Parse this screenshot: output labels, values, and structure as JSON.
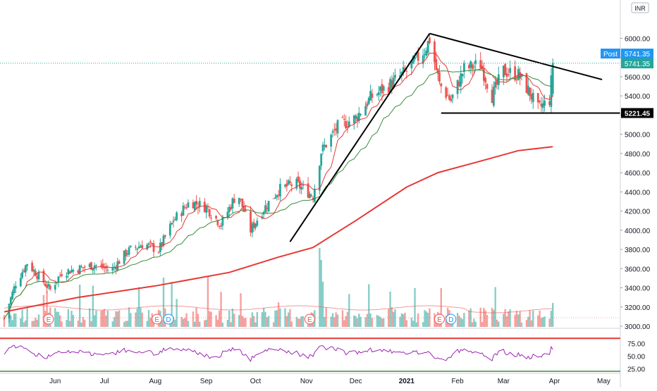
{
  "currency_badge": "INR",
  "post_label": "Post",
  "event_markers": [
    {
      "label": "E",
      "date": "2020-05-28"
    },
    {
      "label": "E",
      "date": "2020-08-02"
    },
    {
      "label": "D",
      "date": "2020-08-09"
    },
    {
      "label": "E",
      "date": "2020-11-03"
    },
    {
      "label": "E",
      "date": "2021-01-21"
    },
    {
      "label": "D",
      "date": "2021-01-28"
    }
  ],
  "chart_data": {
    "type": "candlestick",
    "price_pane": {
      "y_ticks": [
        "6000.00",
        "5800.00",
        "5600.00",
        "5400.00",
        "5200.00",
        "5000.00",
        "4800.00",
        "4600.00",
        "4400.00",
        "4200.00",
        "4000.00",
        "3800.00",
        "3600.00",
        "3400.00",
        "3200.00",
        "3000.00"
      ],
      "ylim": [
        3000,
        6300
      ],
      "scale": "linear",
      "grid": false,
      "last_price": "5741.35",
      "post_price": "5741.35",
      "support_level": "5221.45",
      "trendlines": [
        {
          "from": {
            "date": "2020-10-22",
            "price": 3880
          },
          "to": {
            "date": "2021-01-15",
            "price": 6050
          }
        },
        {
          "from": {
            "date": "2021-01-15",
            "price": 6050
          },
          "to": {
            "date": "2021-04-30",
            "price": 5570
          }
        },
        {
          "from": {
            "date": "2021-01-22",
            "price": 5221.45
          },
          "to": {
            "date": "2021-05-31",
            "price": 5221.45
          }
        }
      ],
      "anchors": [
        {
          "date": "2020-05-01",
          "price": 3080
        },
        {
          "date": "2020-05-08",
          "price": 3450
        },
        {
          "date": "2020-05-15",
          "price": 3660
        },
        {
          "date": "2020-05-22",
          "price": 3520
        },
        {
          "date": "2020-05-29",
          "price": 3380
        },
        {
          "date": "2020-06-05",
          "price": 3560
        },
        {
          "date": "2020-06-15",
          "price": 3600
        },
        {
          "date": "2020-06-25",
          "price": 3640
        },
        {
          "date": "2020-07-05",
          "price": 3580
        },
        {
          "date": "2020-07-15",
          "price": 3780
        },
        {
          "date": "2020-07-25",
          "price": 3860
        },
        {
          "date": "2020-08-03",
          "price": 3790
        },
        {
          "date": "2020-08-12",
          "price": 4100
        },
        {
          "date": "2020-08-22",
          "price": 4300
        },
        {
          "date": "2020-09-01",
          "price": 4240
        },
        {
          "date": "2020-09-10",
          "price": 4060
        },
        {
          "date": "2020-09-20",
          "price": 4400
        },
        {
          "date": "2020-09-28",
          "price": 4000
        },
        {
          "date": "2020-10-05",
          "price": 4200
        },
        {
          "date": "2020-10-15",
          "price": 4420
        },
        {
          "date": "2020-10-25",
          "price": 4490
        },
        {
          "date": "2020-11-05",
          "price": 4360
        },
        {
          "date": "2020-11-10",
          "price": 4820
        },
        {
          "date": "2020-11-20",
          "price": 5080
        },
        {
          "date": "2020-12-01",
          "price": 5170
        },
        {
          "date": "2020-12-10",
          "price": 5380
        },
        {
          "date": "2020-12-22",
          "price": 5520
        },
        {
          "date": "2021-01-01",
          "price": 5660
        },
        {
          "date": "2021-01-12",
          "price": 5880
        },
        {
          "date": "2021-01-15",
          "price": 5990
        },
        {
          "date": "2021-01-21",
          "price": 5520
        },
        {
          "date": "2021-01-28",
          "price": 5350
        },
        {
          "date": "2021-02-05",
          "price": 5680
        },
        {
          "date": "2021-02-15",
          "price": 5730
        },
        {
          "date": "2021-02-22",
          "price": 5400
        },
        {
          "date": "2021-03-01",
          "price": 5660
        },
        {
          "date": "2021-03-10",
          "price": 5620
        },
        {
          "date": "2021-03-17",
          "price": 5430
        },
        {
          "date": "2021-03-22",
          "price": 5260
        },
        {
          "date": "2021-03-29",
          "price": 5360
        },
        {
          "date": "2021-03-31",
          "price": 5741
        }
      ],
      "ma_fast_color": "#e53935",
      "ma_mid_color": "#388e3c",
      "ma_slow_color": "#e53935",
      "ma200_points": [
        {
          "date": "2020-05-01",
          "value": 3150
        },
        {
          "date": "2020-06-15",
          "value": 3300
        },
        {
          "date": "2020-08-01",
          "value": 3420
        },
        {
          "date": "2020-09-15",
          "value": 3560
        },
        {
          "date": "2020-10-15",
          "value": 3720
        },
        {
          "date": "2020-11-05",
          "value": 3820
        },
        {
          "date": "2020-12-01",
          "value": 4100
        },
        {
          "date": "2021-01-01",
          "value": 4450
        },
        {
          "date": "2021-01-20",
          "value": 4600
        },
        {
          "date": "2021-02-15",
          "value": 4720
        },
        {
          "date": "2021-03-10",
          "value": 4830
        },
        {
          "date": "2021-03-31",
          "value": 4870
        }
      ]
    },
    "rsi_pane": {
      "y_ticks": [
        "75.00",
        "50.00",
        "25.00"
      ],
      "ylim": [
        20,
        85
      ],
      "upper_band": 85,
      "lower_band": 20,
      "color": "#9c27b0"
    },
    "x_ticks": [
      {
        "label": "Jun",
        "date": "2020-06-01"
      },
      {
        "label": "Jul",
        "date": "2020-07-01"
      },
      {
        "label": "Aug",
        "date": "2020-08-01"
      },
      {
        "label": "Sep",
        "date": "2020-09-01"
      },
      {
        "label": "Oct",
        "date": "2020-10-01"
      },
      {
        "label": "Nov",
        "date": "2020-11-01"
      },
      {
        "label": "Dec",
        "date": "2020-12-01"
      },
      {
        "label": "2021",
        "date": "2021-01-01",
        "bold": true
      },
      {
        "label": "Feb",
        "date": "2021-02-01"
      },
      {
        "label": "Mar",
        "date": "2021-03-01"
      },
      {
        "label": "Apr",
        "date": "2021-04-01"
      },
      {
        "label": "May",
        "date": "2021-05-01"
      }
    ],
    "colors": {
      "up": "#26a69a",
      "down": "#ef5350",
      "support": "#000000",
      "label_bg": "#000000",
      "post_bg": "#2196f3",
      "last_bg": "#26a69a"
    }
  }
}
